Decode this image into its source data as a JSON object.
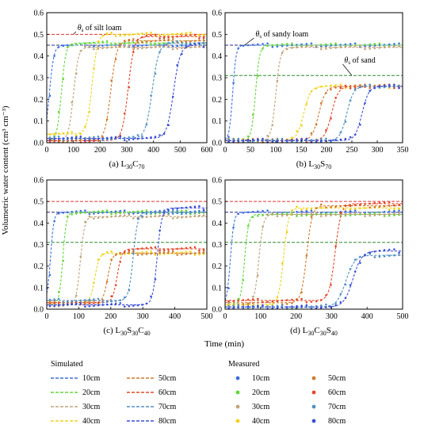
{
  "figure": {
    "ylabel": "Volumetric water content (cm³ cm⁻³)",
    "xlabel": "Time (min)"
  },
  "legend": {
    "simulated_title": "Simulated",
    "measured_title": "Measured",
    "entries": [
      {
        "label": "10cm",
        "color": "#3c6fe0"
      },
      {
        "label": "20cm",
        "color": "#63d63a"
      },
      {
        "label": "30cm",
        "color": "#c2a37a"
      },
      {
        "label": "40cm",
        "color": "#f2d21b"
      },
      {
        "label": "50cm",
        "color": "#d07a2c"
      },
      {
        "label": "60cm",
        "color": "#e4482b"
      },
      {
        "label": "70cm",
        "color": "#4f8fc2"
      },
      {
        "label": "80cm",
        "color": "#3a4fd6"
      }
    ]
  },
  "chart_data": [
    {
      "type": "line",
      "caption": "(a) L30C70",
      "caption_base": "(a) L",
      "caption_parts": [
        [
          "30",
          "sub"
        ],
        [
          "C",
          "base"
        ],
        [
          "70",
          "sub"
        ]
      ],
      "xlim": [
        0,
        600
      ],
      "ylim": [
        0,
        0.6
      ],
      "xticks": [
        0,
        100,
        200,
        300,
        400,
        500,
        600
      ],
      "yticks": [
        0,
        0.1,
        0.2,
        0.3,
        0.4,
        0.5,
        0.6
      ],
      "reference_lines": [
        {
          "y": 0.5,
          "color": "#e03030"
        },
        {
          "y": 0.45,
          "color": "#2a2a8a"
        }
      ],
      "annotations": [
        {
          "text": "θs of silt loam",
          "main": "θ",
          "sub": "s",
          "rest": " of silt loam",
          "at": [
            115,
            0.52
          ],
          "arrow_to": [
            100,
            0.5
          ]
        }
      ],
      "series": [
        {
          "depth": "10cm",
          "t0": 10,
          "k": 0.12,
          "y0": 0.01,
          "y1": 0.45
        },
        {
          "depth": "20cm",
          "t0": 55,
          "k": 0.12,
          "y0": 0.01,
          "y1": 0.46
        },
        {
          "depth": "30cm",
          "t0": 100,
          "k": 0.11,
          "y0": 0.01,
          "y1": 0.44
        },
        {
          "depth": "40cm",
          "t0": 170,
          "k": 0.1,
          "y0": 0.04,
          "y1": 0.5
        },
        {
          "depth": "50cm",
          "t0": 240,
          "k": 0.09,
          "y0": 0.01,
          "y1": 0.47
        },
        {
          "depth": "60cm",
          "t0": 305,
          "k": 0.09,
          "y0": 0.01,
          "y1": 0.49
        },
        {
          "depth": "70cm",
          "t0": 395,
          "k": 0.08,
          "y0": 0.02,
          "y1": 0.46
        },
        {
          "depth": "80cm",
          "t0": 475,
          "k": 0.08,
          "y0": 0.02,
          "y1": 0.45
        }
      ]
    },
    {
      "type": "line",
      "caption": "(b) L30S70",
      "caption_base": "(b) L",
      "caption_parts": [
        [
          "30",
          "sub"
        ],
        [
          "S",
          "base"
        ],
        [
          "70",
          "sub"
        ]
      ],
      "xlim": [
        0,
        350
      ],
      "ylim": [
        0,
        0.6
      ],
      "xticks": [
        0,
        50,
        100,
        150,
        200,
        250,
        300,
        350
      ],
      "yticks": [
        0,
        0.1,
        0.2,
        0.3,
        0.4,
        0.5,
        0.6
      ],
      "reference_lines": [
        {
          "y": 0.45,
          "color": "#2a2a8a"
        },
        {
          "y": 0.31,
          "color": "#2e8b2e"
        }
      ],
      "annotations": [
        {
          "text": "θs of sandy loam",
          "main": "θ",
          "sub": "s",
          "rest": " of sandy loam",
          "at": [
            60,
            0.49
          ],
          "arrow_to": [
            38,
            0.45
          ]
        },
        {
          "text": "θs of sand",
          "main": "θ",
          "sub": "s",
          "rest": " of sand",
          "at": [
            235,
            0.37
          ],
          "arrow_to": [
            250,
            0.31
          ]
        }
      ],
      "series": [
        {
          "depth": "10cm",
          "t0": 15,
          "k": 0.3,
          "y0": 0.01,
          "y1": 0.45
        },
        {
          "depth": "20cm",
          "t0": 60,
          "k": 0.25,
          "y0": 0.01,
          "y1": 0.45
        },
        {
          "depth": "30cm",
          "t0": 100,
          "k": 0.22,
          "y0": 0.01,
          "y1": 0.44
        },
        {
          "depth": "40cm",
          "t0": 155,
          "k": 0.15,
          "y0": 0.01,
          "y1": 0.26
        },
        {
          "depth": "50cm",
          "t0": 185,
          "k": 0.15,
          "y0": 0.01,
          "y1": 0.26
        },
        {
          "depth": "60cm",
          "t0": 210,
          "k": 0.15,
          "y0": 0.01,
          "y1": 0.26
        },
        {
          "depth": "70cm",
          "t0": 240,
          "k": 0.15,
          "y0": 0.01,
          "y1": 0.26
        },
        {
          "depth": "80cm",
          "t0": 270,
          "k": 0.15,
          "y0": 0.01,
          "y1": 0.26
        }
      ]
    },
    {
      "type": "line",
      "caption": "(c) L30S30C40",
      "caption_base": "(c) L",
      "caption_parts": [
        [
          "30",
          "sub"
        ],
        [
          "S",
          "base"
        ],
        [
          "30",
          "sub"
        ],
        [
          "C",
          "base"
        ],
        [
          "40",
          "sub"
        ]
      ],
      "xlim": [
        0,
        500
      ],
      "ylim": [
        0,
        0.6
      ],
      "xticks": [
        0,
        100,
        200,
        300,
        400,
        500
      ],
      "yticks": [
        0,
        0.1,
        0.2,
        0.3,
        0.4,
        0.5,
        0.6
      ],
      "reference_lines": [
        {
          "y": 0.5,
          "color": "#e03030"
        },
        {
          "y": 0.45,
          "color": "#2a2a8a"
        },
        {
          "y": 0.31,
          "color": "#2e8b2e"
        }
      ],
      "annotations": [],
      "series": [
        {
          "depth": "10cm",
          "t0": 12,
          "k": 0.2,
          "y0": 0.04,
          "y1": 0.45
        },
        {
          "depth": "20cm",
          "t0": 50,
          "k": 0.18,
          "y0": 0.02,
          "y1": 0.45
        },
        {
          "depth": "30cm",
          "t0": 105,
          "k": 0.15,
          "y0": 0.02,
          "y1": 0.43
        },
        {
          "depth": "40cm",
          "t0": 150,
          "k": 0.14,
          "y0": 0.03,
          "y1": 0.26
        },
        {
          "depth": "50cm",
          "t0": 190,
          "k": 0.14,
          "y0": 0.03,
          "y1": 0.26
        },
        {
          "depth": "60cm",
          "t0": 220,
          "k": 0.14,
          "y0": 0.03,
          "y1": 0.28
        },
        {
          "depth": "70cm",
          "t0": 270,
          "k": 0.14,
          "y0": 0.04,
          "y1": 0.45
        },
        {
          "depth": "80cm",
          "t0": 345,
          "k": 0.14,
          "y0": 0.02,
          "y1": 0.47
        }
      ]
    },
    {
      "type": "line",
      "caption": "(d) L30C30S40",
      "caption_base": "(d) L",
      "caption_parts": [
        [
          "30",
          "sub"
        ],
        [
          "C",
          "base"
        ],
        [
          "30",
          "sub"
        ],
        [
          "S",
          "base"
        ],
        [
          "40",
          "sub"
        ]
      ],
      "xlim": [
        0,
        500
      ],
      "ylim": [
        0,
        0.6
      ],
      "xticks": [
        0,
        100,
        200,
        300,
        400,
        500
      ],
      "yticks": [
        0,
        0.1,
        0.2,
        0.3,
        0.4,
        0.5,
        0.6
      ],
      "reference_lines": [
        {
          "y": 0.5,
          "color": "#e03030"
        },
        {
          "y": 0.45,
          "color": "#2a2a8a"
        },
        {
          "y": 0.31,
          "color": "#2e8b2e"
        }
      ],
      "annotations": [],
      "series": [
        {
          "depth": "10cm",
          "t0": 15,
          "k": 0.2,
          "y0": 0.02,
          "y1": 0.45
        },
        {
          "depth": "20cm",
          "t0": 55,
          "k": 0.18,
          "y0": 0.02,
          "y1": 0.44
        },
        {
          "depth": "30cm",
          "t0": 95,
          "k": 0.16,
          "y0": 0.02,
          "y1": 0.44
        },
        {
          "depth": "40cm",
          "t0": 165,
          "k": 0.14,
          "y0": 0.02,
          "y1": 0.47
        },
        {
          "depth": "50cm",
          "t0": 230,
          "k": 0.13,
          "y0": 0.03,
          "y1": 0.48
        },
        {
          "depth": "60cm",
          "t0": 310,
          "k": 0.12,
          "y0": 0.04,
          "y1": 0.49
        },
        {
          "depth": "70cm",
          "t0": 340,
          "k": 0.08,
          "y0": 0.01,
          "y1": 0.25
        },
        {
          "depth": "80cm",
          "t0": 360,
          "k": 0.08,
          "y0": 0.01,
          "y1": 0.27
        }
      ]
    }
  ]
}
